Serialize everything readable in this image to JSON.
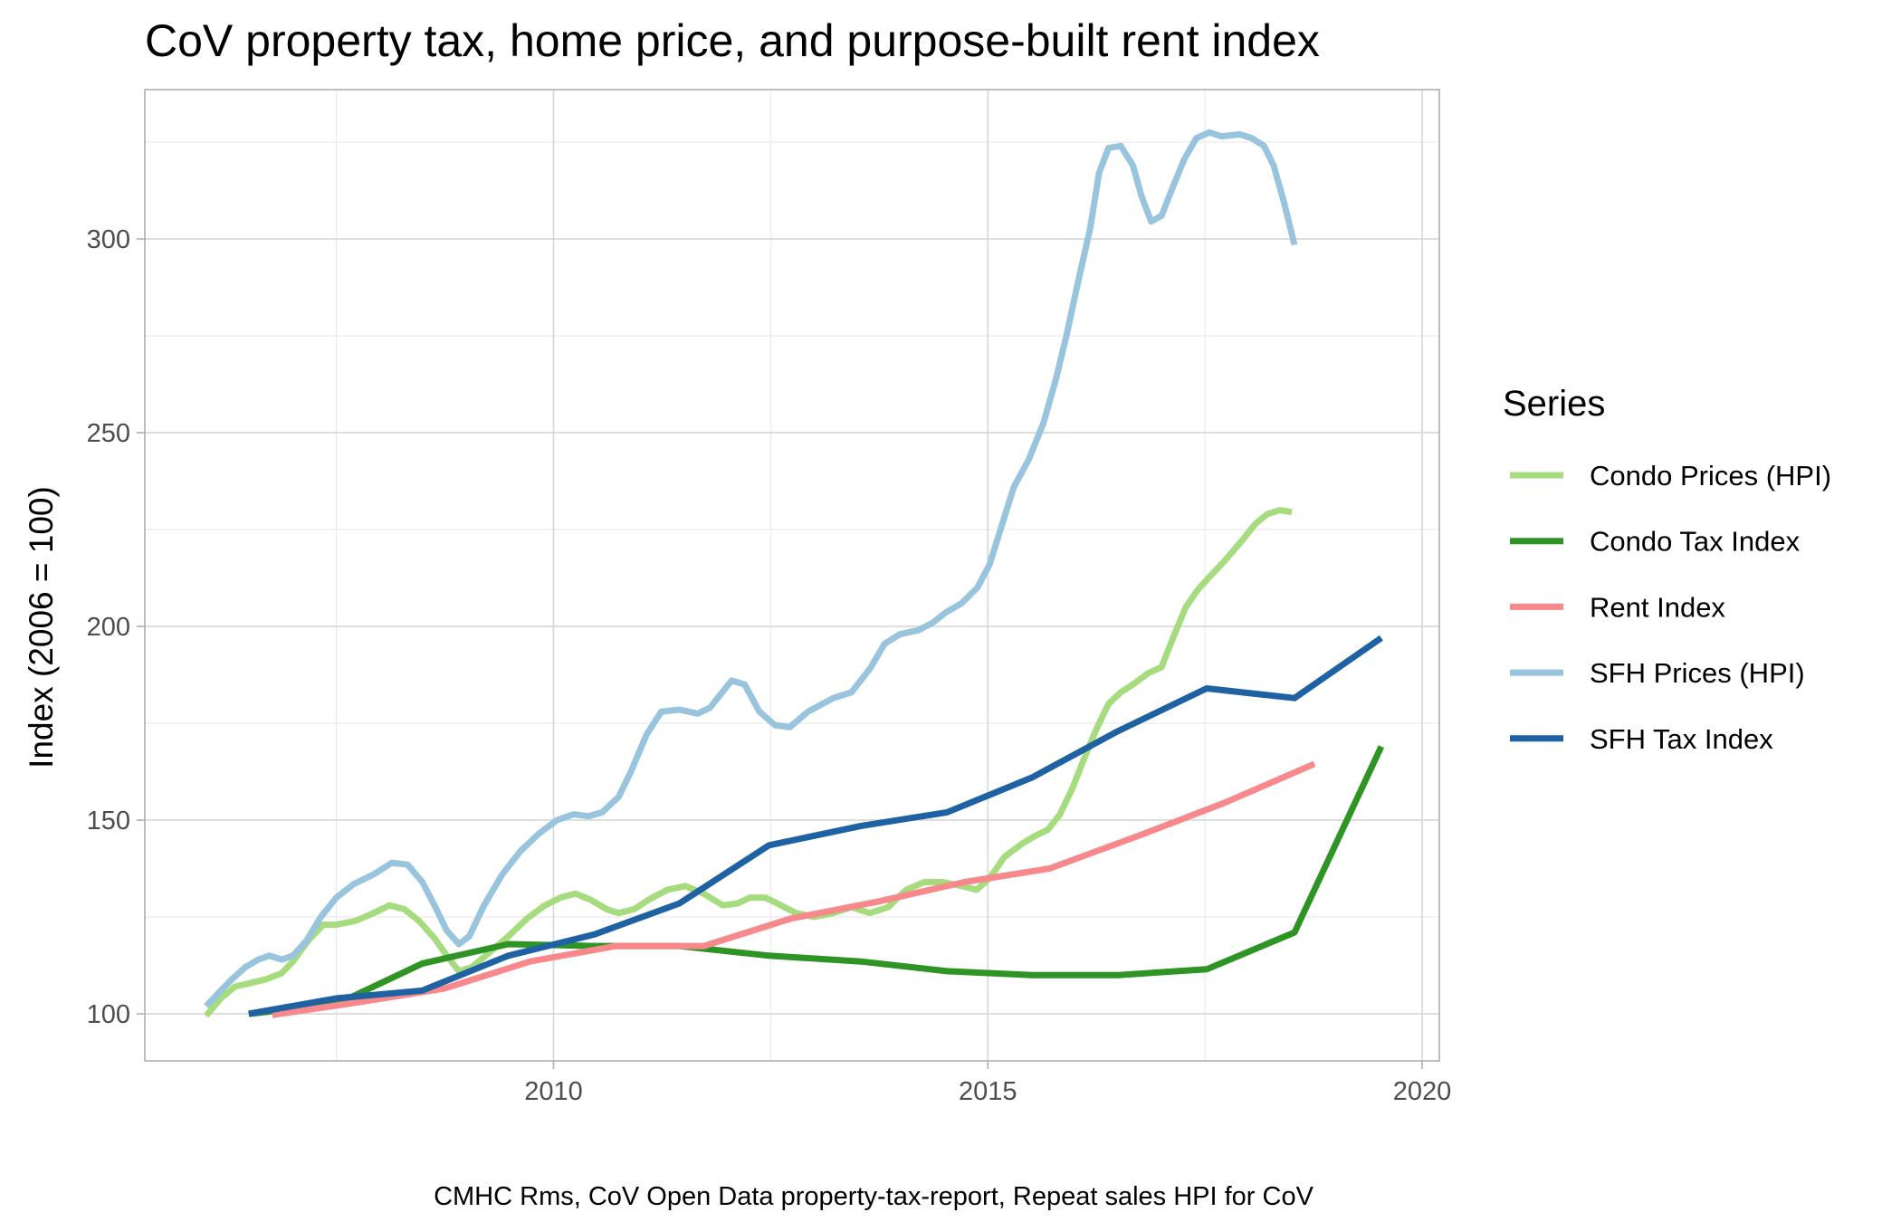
{
  "chart_data": {
    "type": "line",
    "title": "CoV property tax, home price, and purpose-built rent index",
    "xlabel": "",
    "ylabel": "Index (2006 = 100)",
    "caption": "CMHC Rms, CoV Open Data property-tax-report, Repeat sales HPI for CoV",
    "xlim": [
      2005.7,
      2020.3
    ],
    "ylim": [
      88,
      338
    ],
    "x_ticks": [
      2010,
      2015,
      2020
    ],
    "x_tick_labels": [
      "2010",
      "2015",
      "2020"
    ],
    "x_minor_ticks": [
      2007.5,
      2012.5,
      2017.5
    ],
    "y_ticks": [
      100,
      150,
      200,
      250,
      300
    ],
    "y_tick_labels": [
      "100",
      "150",
      "200",
      "250",
      "300"
    ],
    "y_minor_ticks": [
      125,
      175,
      225,
      275,
      325
    ],
    "grid": true,
    "legend": {
      "title": "Series",
      "position": "right"
    },
    "series": [
      {
        "name": "Condo Prices (HPI)",
        "color": "#a6db7e",
        "points": [
          [
            2006.0,
            99.5
          ],
          [
            2006.17,
            104
          ],
          [
            2006.33,
            107
          ],
          [
            2006.52,
            108
          ],
          [
            2006.7,
            109
          ],
          [
            2006.87,
            110.5
          ],
          [
            2007.0,
            113.5
          ],
          [
            2007.18,
            119
          ],
          [
            2007.35,
            123
          ],
          [
            2007.5,
            123
          ],
          [
            2007.72,
            124
          ],
          [
            2007.93,
            126
          ],
          [
            2008.11,
            128
          ],
          [
            2008.28,
            127
          ],
          [
            2008.45,
            124
          ],
          [
            2008.63,
            119.5
          ],
          [
            2008.77,
            115
          ],
          [
            2008.91,
            111
          ],
          [
            2009.06,
            112
          ],
          [
            2009.27,
            116
          ],
          [
            2009.48,
            120
          ],
          [
            2009.69,
            124.5
          ],
          [
            2009.9,
            128
          ],
          [
            2010.08,
            130
          ],
          [
            2010.25,
            131
          ],
          [
            2010.42,
            129.5
          ],
          [
            2010.61,
            127
          ],
          [
            2010.75,
            126
          ],
          [
            2010.93,
            127
          ],
          [
            2011.1,
            129.5
          ],
          [
            2011.31,
            132
          ],
          [
            2011.52,
            133
          ],
          [
            2011.73,
            131
          ],
          [
            2011.95,
            128
          ],
          [
            2012.12,
            128.5
          ],
          [
            2012.26,
            130
          ],
          [
            2012.44,
            130
          ],
          [
            2012.62,
            128
          ],
          [
            2012.79,
            126
          ],
          [
            2013.0,
            125
          ],
          [
            2013.22,
            126
          ],
          [
            2013.43,
            127.5
          ],
          [
            2013.64,
            126
          ],
          [
            2013.85,
            127.5
          ],
          [
            2014.06,
            132
          ],
          [
            2014.27,
            134
          ],
          [
            2014.48,
            134
          ],
          [
            2014.7,
            133
          ],
          [
            2014.87,
            132
          ],
          [
            2015.02,
            135
          ],
          [
            2015.19,
            140.5
          ],
          [
            2015.4,
            144
          ],
          [
            2015.55,
            146
          ],
          [
            2015.69,
            147.5
          ],
          [
            2015.83,
            151.5
          ],
          [
            2015.97,
            158
          ],
          [
            2016.11,
            166
          ],
          [
            2016.25,
            173.5
          ],
          [
            2016.39,
            180
          ],
          [
            2016.53,
            183
          ],
          [
            2016.67,
            185
          ],
          [
            2016.85,
            188
          ],
          [
            2017.0,
            189.5
          ],
          [
            2017.14,
            197.5
          ],
          [
            2017.28,
            205
          ],
          [
            2017.42,
            209.5
          ],
          [
            2017.56,
            213
          ],
          [
            2017.73,
            217
          ],
          [
            2017.94,
            222.5
          ],
          [
            2018.08,
            226.5
          ],
          [
            2018.22,
            229
          ],
          [
            2018.36,
            230
          ],
          [
            2018.5,
            229.5
          ]
        ]
      },
      {
        "name": "Condo Tax Index",
        "color": "#2e9423",
        "points": [
          [
            2006.5,
            100
          ],
          [
            2007.5,
            102.5
          ],
          [
            2008.49,
            113
          ],
          [
            2009.48,
            118
          ],
          [
            2010.47,
            117.5
          ],
          [
            2011.45,
            117.5
          ],
          [
            2012.48,
            115
          ],
          [
            2013.54,
            113.5
          ],
          [
            2014.53,
            111
          ],
          [
            2015.51,
            110
          ],
          [
            2016.5,
            110
          ],
          [
            2017.52,
            111.5
          ],
          [
            2018.53,
            121
          ],
          [
            2019.53,
            169
          ]
        ]
      },
      {
        "name": "Rent Index",
        "color": "#f7888b",
        "points": [
          [
            2006.76,
            99.7
          ],
          [
            2007.76,
            103
          ],
          [
            2008.74,
            106.5
          ],
          [
            2009.73,
            113.5
          ],
          [
            2010.72,
            117.5
          ],
          [
            2011.73,
            117.5
          ],
          [
            2012.72,
            124.5
          ],
          [
            2013.74,
            129
          ],
          [
            2014.73,
            134
          ],
          [
            2015.71,
            137.5
          ],
          [
            2016.74,
            146
          ],
          [
            2017.73,
            154.5
          ],
          [
            2018.76,
            164.5
          ]
        ]
      },
      {
        "name": "SFH Prices (HPI)",
        "color": "#98c4dd",
        "points": [
          [
            2006.0,
            102
          ],
          [
            2006.17,
            106
          ],
          [
            2006.3,
            109
          ],
          [
            2006.45,
            112
          ],
          [
            2006.6,
            114
          ],
          [
            2006.73,
            115
          ],
          [
            2006.87,
            114
          ],
          [
            2007.0,
            115
          ],
          [
            2007.16,
            119
          ],
          [
            2007.32,
            125
          ],
          [
            2007.5,
            130
          ],
          [
            2007.7,
            133.5
          ],
          [
            2007.93,
            136
          ],
          [
            2008.14,
            139
          ],
          [
            2008.32,
            138.5
          ],
          [
            2008.49,
            134
          ],
          [
            2008.63,
            128
          ],
          [
            2008.77,
            121.5
          ],
          [
            2008.91,
            118
          ],
          [
            2009.03,
            120
          ],
          [
            2009.2,
            128
          ],
          [
            2009.41,
            136
          ],
          [
            2009.62,
            142
          ],
          [
            2009.83,
            146.5
          ],
          [
            2010.04,
            150
          ],
          [
            2010.23,
            151.5
          ],
          [
            2010.4,
            151
          ],
          [
            2010.56,
            152
          ],
          [
            2010.75,
            156
          ],
          [
            2010.89,
            162.5
          ],
          [
            2011.07,
            172
          ],
          [
            2011.24,
            178
          ],
          [
            2011.45,
            178.5
          ],
          [
            2011.66,
            177.5
          ],
          [
            2011.8,
            179
          ],
          [
            2012.05,
            186
          ],
          [
            2012.2,
            185
          ],
          [
            2012.37,
            178
          ],
          [
            2012.55,
            174.5
          ],
          [
            2012.72,
            174
          ],
          [
            2012.93,
            178
          ],
          [
            2013.22,
            181.5
          ],
          [
            2013.43,
            183
          ],
          [
            2013.64,
            189
          ],
          [
            2013.81,
            195.5
          ],
          [
            2013.99,
            198
          ],
          [
            2014.2,
            199
          ],
          [
            2014.37,
            201
          ],
          [
            2014.51,
            203.5
          ],
          [
            2014.7,
            206
          ],
          [
            2014.88,
            210
          ],
          [
            2015.02,
            216
          ],
          [
            2015.16,
            226
          ],
          [
            2015.3,
            236
          ],
          [
            2015.47,
            243
          ],
          [
            2015.64,
            252.5
          ],
          [
            2015.78,
            263.5
          ],
          [
            2015.9,
            274.5
          ],
          [
            2016.04,
            289
          ],
          [
            2016.18,
            303
          ],
          [
            2016.28,
            317
          ],
          [
            2016.39,
            323.5
          ],
          [
            2016.53,
            324
          ],
          [
            2016.67,
            319
          ],
          [
            2016.77,
            311
          ],
          [
            2016.88,
            304.5
          ],
          [
            2017.0,
            306
          ],
          [
            2017.14,
            314
          ],
          [
            2017.26,
            320.5
          ],
          [
            2017.4,
            326
          ],
          [
            2017.55,
            327.5
          ],
          [
            2017.69,
            326.5
          ],
          [
            2017.9,
            327
          ],
          [
            2018.04,
            326
          ],
          [
            2018.18,
            324
          ],
          [
            2018.29,
            319
          ],
          [
            2018.41,
            309.5
          ],
          [
            2018.53,
            298.5
          ]
        ]
      },
      {
        "name": "SFH Tax Index",
        "color": "#1f62a3",
        "points": [
          [
            2006.49,
            100
          ],
          [
            2007.5,
            104
          ],
          [
            2008.49,
            106
          ],
          [
            2009.48,
            115
          ],
          [
            2010.47,
            120.5
          ],
          [
            2011.45,
            128.5
          ],
          [
            2012.48,
            143.5
          ],
          [
            2013.54,
            148.5
          ],
          [
            2014.53,
            152
          ],
          [
            2015.51,
            161
          ],
          [
            2016.5,
            173
          ],
          [
            2017.52,
            184
          ],
          [
            2018.53,
            181.5
          ],
          [
            2019.53,
            197
          ]
        ]
      }
    ]
  }
}
